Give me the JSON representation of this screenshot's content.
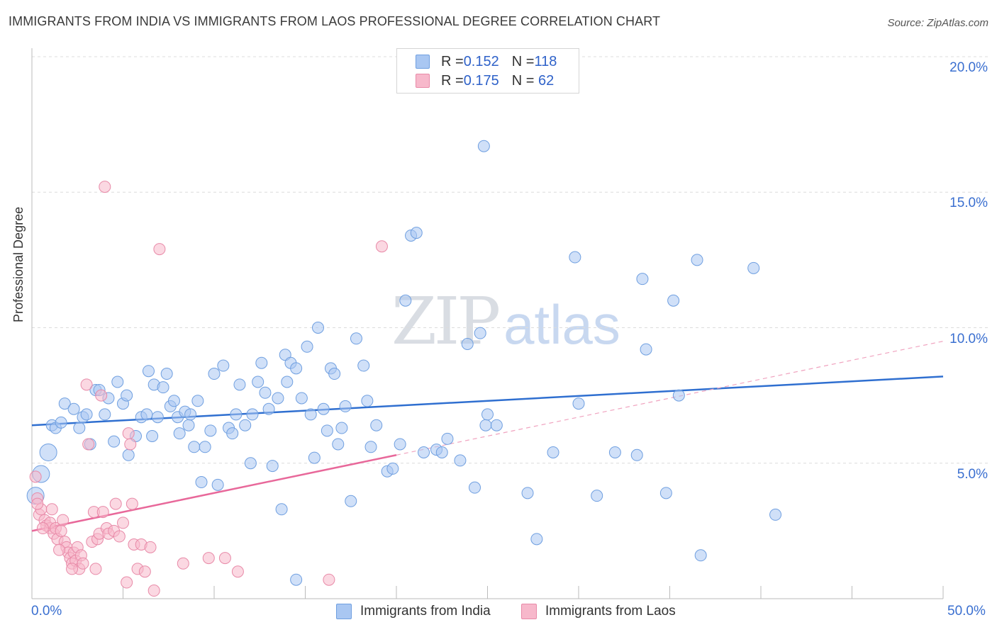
{
  "title": "IMMIGRANTS FROM INDIA VS IMMIGRANTS FROM LAOS PROFESSIONAL DEGREE CORRELATION CHART",
  "source": "Source: ZipAtlas.com",
  "watermark": {
    "zip": "ZIP",
    "atlas": "atlas"
  },
  "legend": {
    "rows": [
      {
        "r_label": "R = ",
        "r_value": "0.152",
        "n_label": "N = ",
        "n_value": "118",
        "color": "#a9c7f2"
      },
      {
        "r_label": "R = ",
        "r_value": "0.175",
        "n_label": "N = ",
        "n_value": " 62",
        "color": "#f7b8cb"
      }
    ]
  },
  "bottom_legend": [
    {
      "label": "Immigrants from India",
      "color": "#a9c7f2"
    },
    {
      "label": "Immigrants from Laos",
      "color": "#f7b8cb"
    }
  ],
  "chart_data": {
    "type": "scatter",
    "title": "IMMIGRANTS FROM INDIA VS IMMIGRANTS FROM LAOS PROFESSIONAL DEGREE CORRELATION CHART",
    "xlabel": "",
    "ylabel": "Professional Degree",
    "xlim": [
      0,
      50
    ],
    "ylim": [
      0,
      20
    ],
    "x_tick_labels": [
      "0.0%",
      "50.0%"
    ],
    "y_ticks": [
      5,
      10,
      15,
      20
    ],
    "y_tick_labels": [
      "5.0%",
      "10.0%",
      "15.0%",
      "20.0%"
    ],
    "grid": true,
    "legend_position": "top-center",
    "series": [
      {
        "name": "Immigrants from India",
        "color": "#a9c7f2",
        "edge": "#6f9fe0",
        "trend": {
          "x0": 0,
          "y0": 6.4,
          "x1": 50,
          "y1": 8.2,
          "color": "#2f6fd0"
        },
        "points": [
          [
            0.2,
            3.8
          ],
          [
            0.5,
            4.6
          ],
          [
            0.9,
            5.4
          ],
          [
            1.1,
            6.4
          ],
          [
            1.3,
            6.3
          ],
          [
            1.6,
            6.5
          ],
          [
            1.8,
            7.2
          ],
          [
            2.3,
            7.0
          ],
          [
            2.6,
            6.3
          ],
          [
            2.8,
            6.7
          ],
          [
            3.0,
            6.8
          ],
          [
            3.2,
            5.7
          ],
          [
            3.5,
            7.7
          ],
          [
            3.7,
            7.7
          ],
          [
            4.0,
            6.8
          ],
          [
            4.2,
            7.4
          ],
          [
            4.5,
            5.8
          ],
          [
            4.7,
            8.0
          ],
          [
            5.0,
            7.2
          ],
          [
            5.2,
            7.5
          ],
          [
            5.3,
            5.3
          ],
          [
            5.7,
            6.0
          ],
          [
            6.0,
            6.7
          ],
          [
            6.3,
            6.8
          ],
          [
            6.4,
            8.4
          ],
          [
            6.6,
            6.0
          ],
          [
            6.7,
            7.9
          ],
          [
            6.9,
            6.7
          ],
          [
            7.2,
            7.8
          ],
          [
            7.4,
            8.3
          ],
          [
            7.6,
            7.1
          ],
          [
            7.8,
            7.3
          ],
          [
            8.0,
            6.7
          ],
          [
            8.1,
            6.1
          ],
          [
            8.4,
            6.9
          ],
          [
            8.6,
            6.4
          ],
          [
            8.7,
            6.8
          ],
          [
            8.9,
            5.6
          ],
          [
            9.1,
            7.3
          ],
          [
            9.3,
            4.3
          ],
          [
            9.5,
            5.6
          ],
          [
            9.8,
            6.2
          ],
          [
            10.0,
            8.3
          ],
          [
            10.2,
            4.2
          ],
          [
            10.5,
            8.6
          ],
          [
            10.8,
            6.3
          ],
          [
            11.0,
            6.1
          ],
          [
            11.2,
            6.8
          ],
          [
            11.4,
            7.9
          ],
          [
            11.7,
            6.4
          ],
          [
            12.0,
            5.0
          ],
          [
            12.1,
            6.8
          ],
          [
            12.4,
            8.0
          ],
          [
            12.6,
            8.7
          ],
          [
            12.8,
            7.6
          ],
          [
            13.0,
            7.0
          ],
          [
            13.2,
            4.9
          ],
          [
            13.5,
            7.4
          ],
          [
            13.7,
            3.3
          ],
          [
            13.9,
            9.0
          ],
          [
            14.0,
            8.0
          ],
          [
            14.2,
            8.7
          ],
          [
            14.5,
            8.5
          ],
          [
            14.8,
            7.4
          ],
          [
            15.1,
            9.3
          ],
          [
            15.3,
            6.8
          ],
          [
            15.5,
            5.2
          ],
          [
            15.7,
            10.0
          ],
          [
            16.0,
            7.0
          ],
          [
            16.2,
            6.2
          ],
          [
            16.4,
            8.5
          ],
          [
            16.6,
            8.3
          ],
          [
            16.8,
            5.7
          ],
          [
            17.0,
            6.3
          ],
          [
            17.2,
            7.1
          ],
          [
            17.5,
            3.6
          ],
          [
            17.8,
            9.6
          ],
          [
            18.2,
            8.6
          ],
          [
            18.4,
            7.3
          ],
          [
            18.6,
            5.6
          ],
          [
            18.9,
            6.4
          ],
          [
            19.5,
            4.7
          ],
          [
            19.8,
            4.8
          ],
          [
            20.2,
            5.7
          ],
          [
            20.5,
            11.0
          ],
          [
            20.8,
            13.4
          ],
          [
            21.1,
            13.5
          ],
          [
            21.5,
            5.4
          ],
          [
            22.2,
            5.5
          ],
          [
            22.5,
            5.4
          ],
          [
            22.8,
            5.9
          ],
          [
            23.5,
            5.1
          ],
          [
            23.9,
            9.4
          ],
          [
            24.3,
            4.1
          ],
          [
            24.6,
            9.8
          ],
          [
            24.9,
            6.4
          ],
          [
            25.0,
            6.8
          ],
          [
            24.8,
            16.7
          ],
          [
            25.5,
            6.4
          ],
          [
            27.2,
            3.9
          ],
          [
            27.7,
            2.2
          ],
          [
            28.6,
            5.4
          ],
          [
            29.8,
            12.6
          ],
          [
            30.0,
            7.2
          ],
          [
            31.0,
            3.8
          ],
          [
            32.0,
            5.4
          ],
          [
            33.2,
            5.3
          ],
          [
            33.5,
            11.8
          ],
          [
            33.7,
            9.2
          ],
          [
            34.8,
            3.9
          ],
          [
            35.2,
            11.0
          ],
          [
            35.5,
            7.5
          ],
          [
            36.7,
            1.6
          ],
          [
            36.5,
            12.5
          ],
          [
            39.6,
            12.2
          ],
          [
            40.8,
            3.1
          ],
          [
            14.5,
            0.7
          ]
        ]
      },
      {
        "name": "Immigrants from Laos",
        "color": "#f7b8cb",
        "edge": "#e88aa8",
        "trend": {
          "x0": 0,
          "y0": 2.5,
          "x1": 20,
          "y1": 5.3,
          "color": "#e8689a"
        },
        "trend_ext": {
          "x0": 20,
          "y0": 5.3,
          "x1": 50,
          "y1": 9.5,
          "color": "#f0a3bf"
        },
        "points": [
          [
            0.2,
            4.5
          ],
          [
            0.3,
            3.7
          ],
          [
            0.4,
            3.1
          ],
          [
            0.5,
            3.3
          ],
          [
            0.7,
            2.9
          ],
          [
            0.8,
            2.7
          ],
          [
            1.0,
            2.6
          ],
          [
            1.0,
            2.8
          ],
          [
            1.1,
            3.3
          ],
          [
            1.2,
            2.4
          ],
          [
            1.3,
            2.6
          ],
          [
            1.4,
            2.2
          ],
          [
            1.6,
            2.5
          ],
          [
            1.7,
            2.9
          ],
          [
            1.8,
            2.1
          ],
          [
            1.9,
            1.9
          ],
          [
            2.0,
            1.7
          ],
          [
            2.1,
            1.5
          ],
          [
            2.2,
            1.3
          ],
          [
            2.3,
            1.7
          ],
          [
            2.4,
            1.4
          ],
          [
            2.5,
            1.9
          ],
          [
            2.6,
            1.1
          ],
          [
            2.7,
            1.6
          ],
          [
            2.8,
            1.3
          ],
          [
            3.0,
            7.9
          ],
          [
            3.1,
            5.7
          ],
          [
            3.3,
            2.1
          ],
          [
            3.4,
            3.2
          ],
          [
            3.5,
            1.1
          ],
          [
            3.6,
            2.2
          ],
          [
            3.7,
            2.4
          ],
          [
            3.8,
            7.5
          ],
          [
            3.9,
            3.2
          ],
          [
            4.0,
            15.2
          ],
          [
            4.1,
            2.6
          ],
          [
            4.2,
            2.4
          ],
          [
            4.5,
            2.5
          ],
          [
            4.6,
            3.5
          ],
          [
            4.8,
            2.3
          ],
          [
            5.0,
            2.8
          ],
          [
            5.2,
            0.6
          ],
          [
            5.3,
            6.1
          ],
          [
            5.4,
            5.7
          ],
          [
            5.5,
            3.5
          ],
          [
            5.6,
            2.0
          ],
          [
            5.8,
            1.1
          ],
          [
            6.0,
            2.0
          ],
          [
            6.2,
            1.0
          ],
          [
            6.5,
            1.9
          ],
          [
            6.7,
            0.3
          ],
          [
            7.0,
            12.9
          ],
          [
            8.3,
            1.3
          ],
          [
            9.7,
            1.5
          ],
          [
            10.6,
            1.5
          ],
          [
            11.3,
            1.0
          ],
          [
            16.3,
            0.7
          ],
          [
            19.2,
            13.0
          ],
          [
            0.3,
            3.5
          ],
          [
            1.5,
            1.8
          ],
          [
            2.2,
            1.1
          ],
          [
            0.6,
            2.6
          ]
        ]
      }
    ]
  }
}
